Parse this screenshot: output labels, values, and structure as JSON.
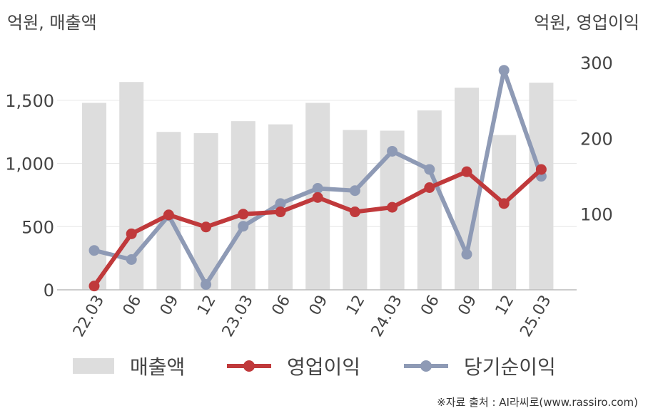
{
  "axis_units": {
    "left": "억원, 매출액",
    "right": "억원, 영업이익"
  },
  "source": "※자료 출처 : AI라씨로(www.rassiro.com)",
  "colors": {
    "revenue": "#dddddd",
    "operating_profit": "#c0393b",
    "net_income": "#8e9ab5"
  },
  "chart_data": {
    "type": "bar",
    "categories": [
      "22.03",
      "06",
      "09",
      "12",
      "23.03",
      "06",
      "09",
      "12",
      "24.03",
      "06",
      "09",
      "12",
      "25.03"
    ],
    "series": [
      {
        "name": "매출액",
        "type": "bar",
        "axis": "left",
        "values": [
          1480,
          1645,
          1250,
          1240,
          1335,
          1310,
          1480,
          1265,
          1260,
          1420,
          1600,
          1225,
          1640
        ]
      },
      {
        "name": "영업이익",
        "type": "line",
        "axis": "right",
        "values": [
          5,
          74,
          99,
          83,
          100,
          103,
          122,
          103,
          109,
          135,
          156,
          114,
          159
        ]
      },
      {
        "name": "당기순이익",
        "type": "line",
        "axis": "right",
        "values": [
          52,
          40,
          98,
          7,
          84,
          114,
          134,
          131,
          183,
          159,
          47,
          290,
          150
        ]
      }
    ],
    "y_left": {
      "min": 0,
      "max": 1750,
      "ticks": [
        0,
        500,
        1000,
        1500
      ],
      "tick_labels": [
        "0",
        "500",
        "1,000",
        "1,500"
      ]
    },
    "y_right": {
      "min": 0,
      "max": 350,
      "ticks": [
        100,
        200,
        300
      ],
      "tick_labels": [
        "100",
        "200",
        "300"
      ]
    },
    "grid": true,
    "legend_position": "bottom"
  }
}
